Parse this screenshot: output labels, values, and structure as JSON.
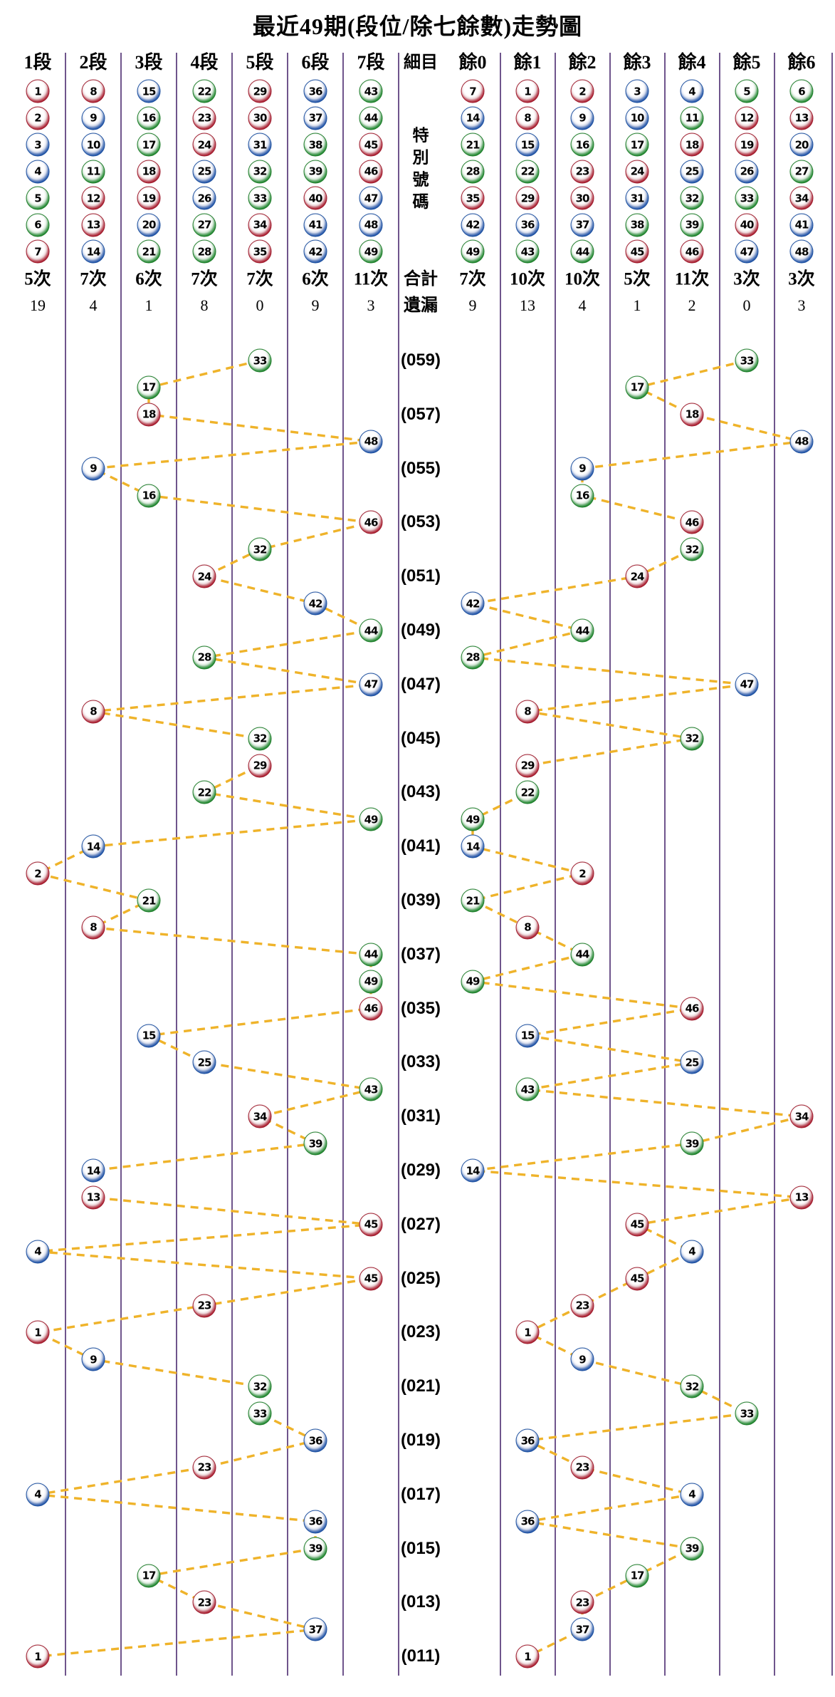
{
  "title": "最近49期(段位/除七餘數)走勢圖",
  "colors": {
    "red": "#c5293b",
    "red_dark": "#9c1b2c",
    "blue": "#2e6ec6",
    "blue_dark": "#1d4f9d",
    "green": "#2da03b",
    "green_dark": "#1e7b2a",
    "grid_line": "#4b2a70",
    "dash": "#efb32a",
    "text": "#000000"
  },
  "ball_color_groups": {
    "red": [
      1,
      2,
      7,
      8,
      12,
      13,
      18,
      19,
      23,
      24,
      29,
      30,
      34,
      35,
      40,
      45,
      46
    ],
    "blue": [
      3,
      4,
      9,
      10,
      14,
      15,
      20,
      25,
      26,
      31,
      36,
      37,
      41,
      42,
      47,
      48
    ],
    "green": [
      5,
      6,
      11,
      16,
      17,
      21,
      22,
      27,
      28,
      32,
      33,
      38,
      39,
      43,
      44,
      49
    ]
  },
  "center_labels": {
    "detail": "細目",
    "special_vertical": [
      "特",
      "別",
      "號",
      "碼"
    ],
    "total": "合計",
    "miss": "遺漏"
  },
  "left_columns": [
    {
      "label": "1段",
      "balls": [
        1,
        2,
        3,
        4,
        5,
        6,
        7
      ],
      "count": "5次",
      "miss": "19"
    },
    {
      "label": "2段",
      "balls": [
        8,
        9,
        10,
        11,
        12,
        13,
        14
      ],
      "count": "7次",
      "miss": "4"
    },
    {
      "label": "3段",
      "balls": [
        15,
        16,
        17,
        18,
        19,
        20,
        21
      ],
      "count": "6次",
      "miss": "1"
    },
    {
      "label": "4段",
      "balls": [
        22,
        23,
        24,
        25,
        26,
        27,
        28
      ],
      "count": "7次",
      "miss": "8"
    },
    {
      "label": "5段",
      "balls": [
        29,
        30,
        31,
        32,
        33,
        34,
        35
      ],
      "count": "7次",
      "miss": "0"
    },
    {
      "label": "6段",
      "balls": [
        36,
        37,
        38,
        39,
        40,
        41,
        42
      ],
      "count": "6次",
      "miss": "9"
    },
    {
      "label": "7段",
      "balls": [
        43,
        44,
        45,
        46,
        47,
        48,
        49
      ],
      "count": "11次",
      "miss": "3"
    }
  ],
  "right_columns": [
    {
      "label": "餘0",
      "balls": [
        7,
        14,
        21,
        28,
        35,
        42,
        49
      ],
      "count": "7次",
      "miss": "9"
    },
    {
      "label": "餘1",
      "balls": [
        1,
        8,
        15,
        22,
        29,
        36,
        43
      ],
      "count": "10次",
      "miss": "13"
    },
    {
      "label": "餘2",
      "balls": [
        2,
        9,
        16,
        23,
        30,
        37,
        44
      ],
      "count": "10次",
      "miss": "4"
    },
    {
      "label": "餘3",
      "balls": [
        3,
        10,
        17,
        24,
        31,
        38,
        45
      ],
      "count": "5次",
      "miss": "1"
    },
    {
      "label": "餘4",
      "balls": [
        4,
        11,
        18,
        25,
        32,
        39,
        46
      ],
      "count": "11次",
      "miss": "2"
    },
    {
      "label": "餘5",
      "balls": [
        5,
        12,
        19,
        26,
        33,
        40,
        47
      ],
      "count": "3次",
      "miss": "0"
    },
    {
      "label": "餘6",
      "balls": [
        6,
        13,
        20,
        27,
        34,
        41,
        48
      ],
      "count": "3次",
      "miss": "3"
    }
  ],
  "chart_data": {
    "type": "scatter",
    "title": "最近49期(段位/除七餘數)走勢圖",
    "left_panel_categories": [
      "1段",
      "2段",
      "3段",
      "4段",
      "5段",
      "6段",
      "7段"
    ],
    "right_panel_categories": [
      "餘0",
      "餘1",
      "餘2",
      "餘3",
      "餘4",
      "餘5",
      "餘6"
    ],
    "legend": "each row is one draw period, top = most recent; left panel x = ceil(n/7), right panel x = n mod 7",
    "draws": [
      {
        "label": "(059)",
        "special": 33
      },
      {
        "label": "",
        "special": 17
      },
      {
        "label": "(057)",
        "special": 18
      },
      {
        "label": "",
        "special": 48
      },
      {
        "label": "(055)",
        "special": 9
      },
      {
        "label": "",
        "special": 16
      },
      {
        "label": "(053)",
        "special": 46
      },
      {
        "label": "",
        "special": 32
      },
      {
        "label": "(051)",
        "special": 24
      },
      {
        "label": "",
        "special": 42
      },
      {
        "label": "(049)",
        "special": 44
      },
      {
        "label": "",
        "special": 28
      },
      {
        "label": "(047)",
        "special": 47
      },
      {
        "label": "",
        "special": 8
      },
      {
        "label": "(045)",
        "special": 32
      },
      {
        "label": "",
        "special": 29
      },
      {
        "label": "(043)",
        "special": 22
      },
      {
        "label": "",
        "special": 49
      },
      {
        "label": "(041)",
        "special": 14
      },
      {
        "label": "",
        "special": 2
      },
      {
        "label": "(039)",
        "special": 21
      },
      {
        "label": "",
        "special": 8
      },
      {
        "label": "(037)",
        "special": 44
      },
      {
        "label": "",
        "special": 49
      },
      {
        "label": "(035)",
        "special": 46
      },
      {
        "label": "",
        "special": 15
      },
      {
        "label": "(033)",
        "special": 25
      },
      {
        "label": "",
        "special": 43
      },
      {
        "label": "(031)",
        "special": 34
      },
      {
        "label": "",
        "special": 39
      },
      {
        "label": "(029)",
        "special": 14
      },
      {
        "label": "",
        "special": 13
      },
      {
        "label": "(027)",
        "special": 45
      },
      {
        "label": "",
        "special": 4
      },
      {
        "label": "(025)",
        "special": 45
      },
      {
        "label": "",
        "special": 23
      },
      {
        "label": "(023)",
        "special": 1
      },
      {
        "label": "",
        "special": 9
      },
      {
        "label": "(021)",
        "special": 32
      },
      {
        "label": "",
        "special": 33
      },
      {
        "label": "(019)",
        "special": 36
      },
      {
        "label": "",
        "special": 23
      },
      {
        "label": "(017)",
        "special": 4
      },
      {
        "label": "",
        "special": 36
      },
      {
        "label": "(015)",
        "special": 39
      },
      {
        "label": "",
        "special": 17
      },
      {
        "label": "(013)",
        "special": 23
      },
      {
        "label": "",
        "special": 37
      },
      {
        "label": "(011)",
        "special": 1
      }
    ],
    "left_counts": [
      "5次",
      "7次",
      "6次",
      "7次",
      "7次",
      "6次",
      "11次"
    ],
    "left_miss": [
      19,
      4,
      1,
      8,
      0,
      9,
      3
    ],
    "right_counts": [
      "7次",
      "10次",
      "10次",
      "5次",
      "11次",
      "3次",
      "3次"
    ],
    "right_miss": [
      9,
      13,
      4,
      1,
      2,
      0,
      3
    ]
  }
}
